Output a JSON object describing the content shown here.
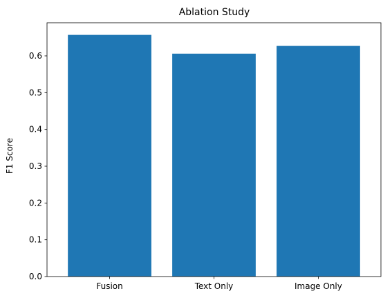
{
  "chart_data": {
    "type": "bar",
    "title": "Ablation Study",
    "xlabel": "",
    "ylabel": "F1 Score",
    "categories": [
      "Fusion",
      "Text Only",
      "Image Only"
    ],
    "values": [
      0.657,
      0.606,
      0.627
    ],
    "ylim": [
      0,
      0.69
    ],
    "yticks": [
      0.0,
      0.1,
      0.2,
      0.3,
      0.4,
      0.5,
      0.6
    ],
    "ytick_labels": [
      "0.0",
      "0.1",
      "0.2",
      "0.3",
      "0.4",
      "0.5",
      "0.6"
    ],
    "bar_color": "#1f77b4",
    "grid": false,
    "legend": false
  }
}
